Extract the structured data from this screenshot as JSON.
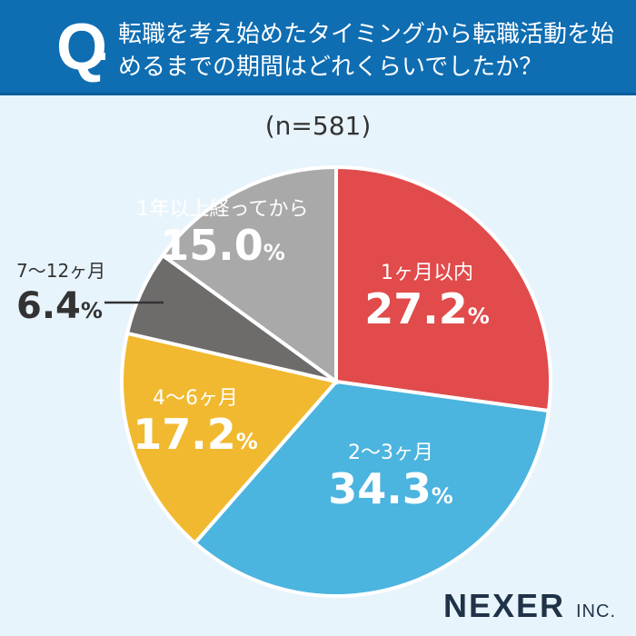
{
  "header": {
    "q": "Q",
    "title": "転職を考え始めたタイミングから転職活動を始めるまでの期間はどれくらいでしたか？"
  },
  "chart_data": {
    "type": "pie",
    "subtitle": "(n=581)",
    "start": "top",
    "direction": "clockwise",
    "categories": [
      "1ヶ月以内",
      "2〜3ヶ月",
      "4〜6ヶ月",
      "7〜12ヶ月",
      "1年以上経ってから"
    ],
    "values": [
      27.2,
      34.3,
      17.2,
      6.4,
      15.0
    ],
    "labels": [
      "27.2",
      "34.3",
      "17.2",
      "6.4",
      "15.0"
    ],
    "unit": "%",
    "colors": [
      "#e14b4b",
      "#4bb4df",
      "#f1b92f",
      "#6e6b6b",
      "#a9a9a9"
    ]
  },
  "logo": {
    "main": "NEXER",
    "suffix": "INC."
  }
}
